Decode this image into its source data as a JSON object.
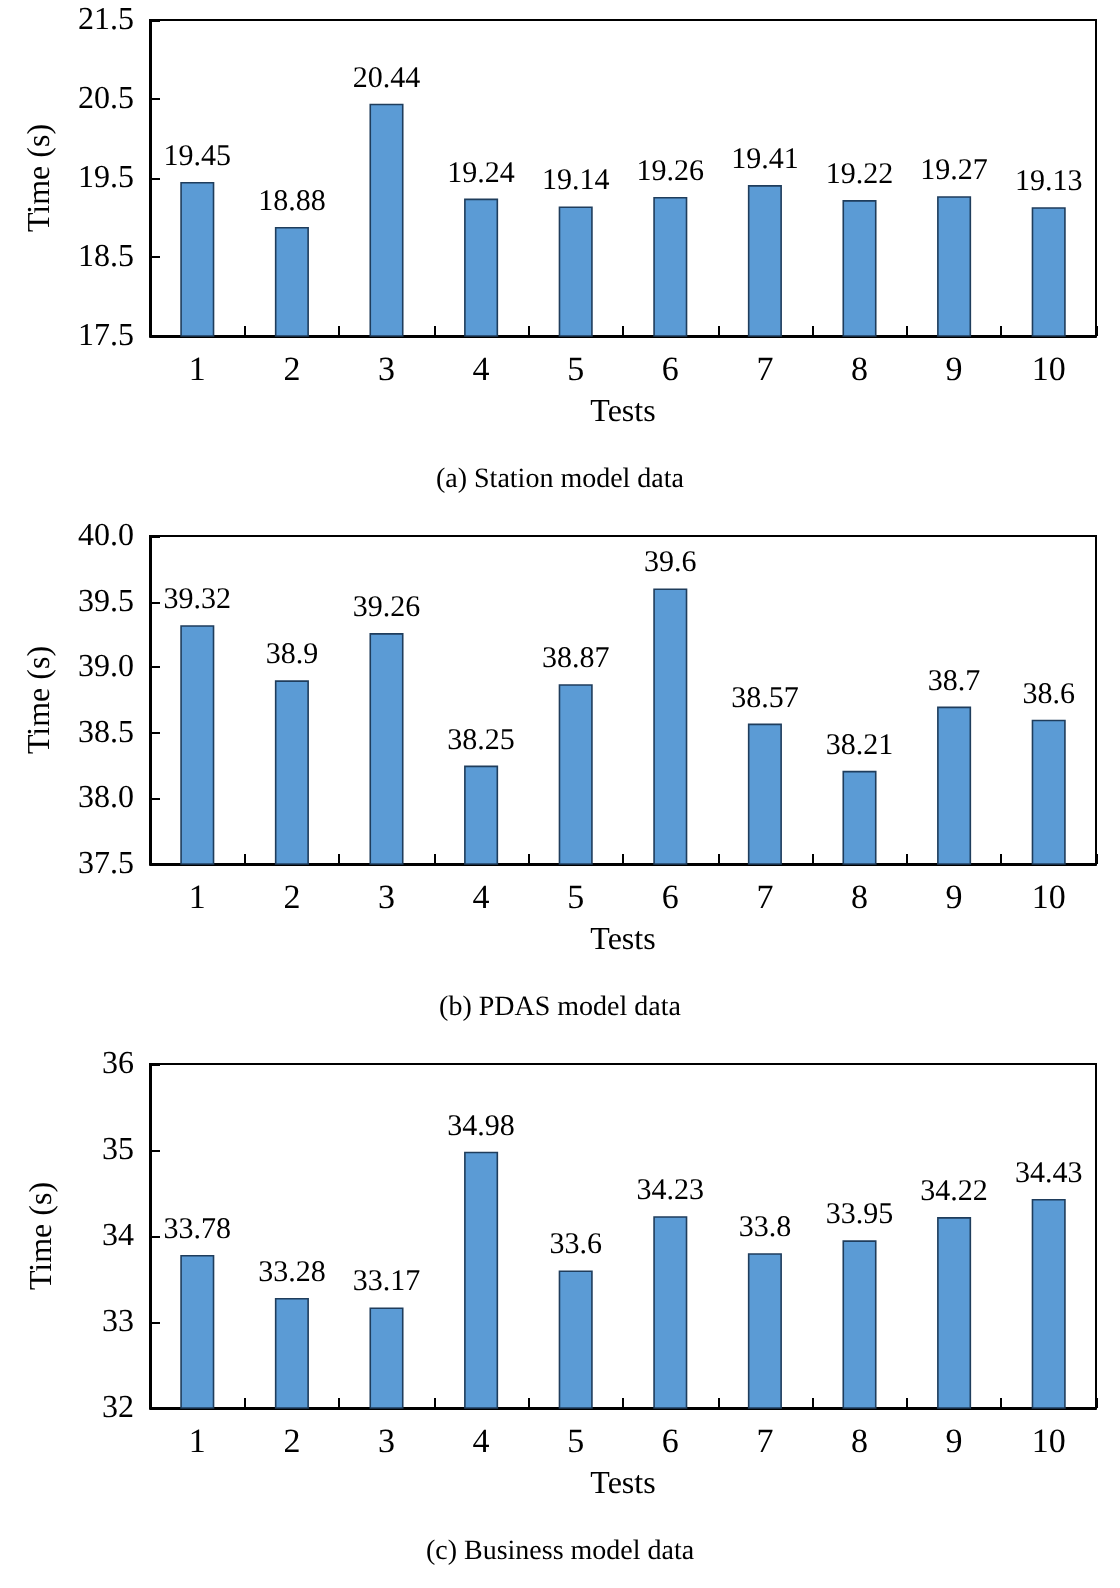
{
  "chart_data": [
    {
      "type": "bar",
      "title": "(a) Station model data",
      "xlabel": "Tests",
      "ylabel": "Time (s)",
      "categories": [
        "1",
        "2",
        "3",
        "4",
        "5",
        "6",
        "7",
        "8",
        "9",
        "10"
      ],
      "values": [
        19.45,
        18.88,
        20.44,
        19.24,
        19.14,
        19.26,
        19.41,
        19.22,
        19.27,
        19.13
      ],
      "color": "#5b9bd5",
      "ylim": [
        17.5,
        21.5
      ],
      "yticks": [
        17.5,
        18.5,
        19.5,
        20.5,
        21.5
      ],
      "data_labels": true,
      "grid": false
    },
    {
      "type": "bar",
      "title": "(b) PDAS model data",
      "xlabel": "Tests",
      "ylabel": "Time (s)",
      "categories": [
        "1",
        "2",
        "3",
        "4",
        "5",
        "6",
        "7",
        "8",
        "9",
        "10"
      ],
      "values": [
        39.32,
        38.9,
        39.26,
        38.25,
        38.87,
        39.6,
        38.57,
        38.21,
        38.7,
        38.6
      ],
      "color": "#5b9bd5",
      "ylim": [
        37.5,
        40
      ],
      "yticks": [
        37.5,
        {
          "value": 38,
          "label": "38.0"
        },
        38.5,
        {
          "value": 39,
          "label": "39.0"
        },
        39.5,
        {
          "value": 40,
          "label": "40.0"
        }
      ],
      "data_labels": true,
      "grid": false
    },
    {
      "type": "bar",
      "title": "(c) Business model data",
      "xlabel": "Tests",
      "ylabel": "Time (s)",
      "categories": [
        "1",
        "2",
        "3",
        "4",
        "5",
        "6",
        "7",
        "8",
        "9",
        "10"
      ],
      "values": [
        33.78,
        33.28,
        33.17,
        34.98,
        33.6,
        34.23,
        33.8,
        33.95,
        34.22,
        34.43
      ],
      "color": "#5b9bd5",
      "ylim": [
        32,
        36
      ],
      "yticks": [
        32,
        33,
        34,
        35,
        36
      ],
      "data_labels": true,
      "grid": false
    }
  ]
}
